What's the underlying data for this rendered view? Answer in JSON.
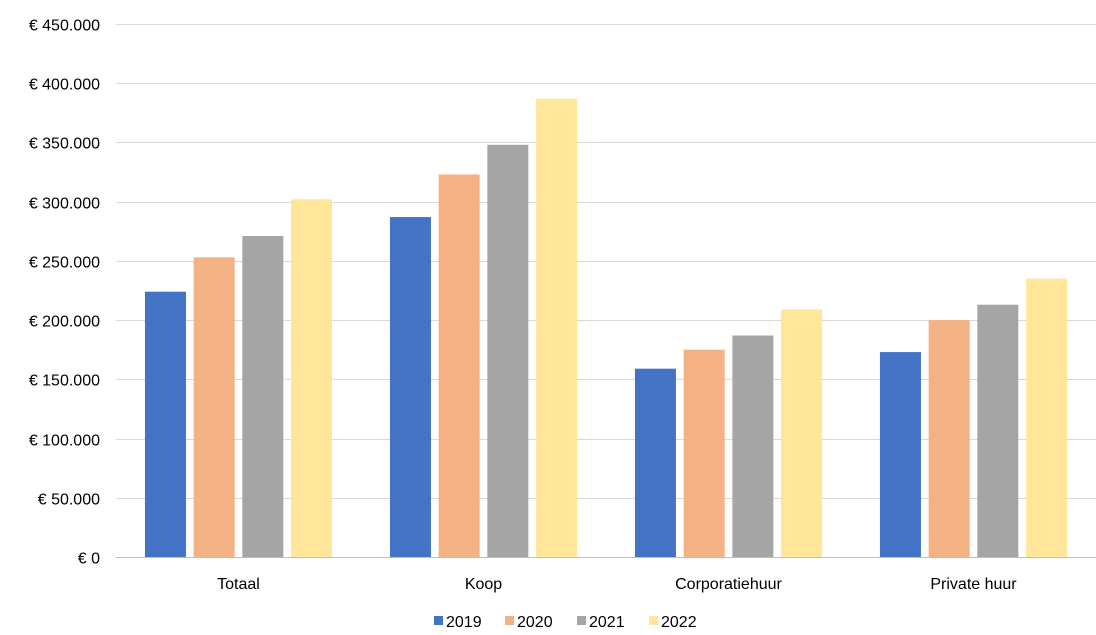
{
  "chart_data": {
    "type": "bar",
    "categories": [
      "Totaal",
      "Koop",
      "Corporatiehuur",
      "Private huur"
    ],
    "series": [
      {
        "name": "2019",
        "color": "#4472c4",
        "values": [
          224000,
          287000,
          159000,
          173000
        ]
      },
      {
        "name": "2020",
        "color": "#f4b183",
        "values": [
          253000,
          323000,
          175000,
          200000
        ]
      },
      {
        "name": "2021",
        "color": "#a5a5a5",
        "values": [
          271000,
          348000,
          187000,
          213000
        ]
      },
      {
        "name": "2022",
        "color": "#ffe699",
        "values": [
          302000,
          387000,
          209000,
          235000
        ]
      }
    ],
    "ylim": [
      0,
      450000
    ],
    "yticks": [
      0,
      50000,
      100000,
      150000,
      200000,
      250000,
      300000,
      350000,
      400000,
      450000
    ],
    "ytick_labels": [
      "€ 0",
      "€ 50.000",
      "€ 100.000",
      "€ 150.000",
      "€ 200.000",
      "€ 250.000",
      "€ 300.000",
      "€ 350.000",
      "€ 400.000",
      "€ 450.000"
    ],
    "grid": true,
    "legend_position": "bottom"
  }
}
